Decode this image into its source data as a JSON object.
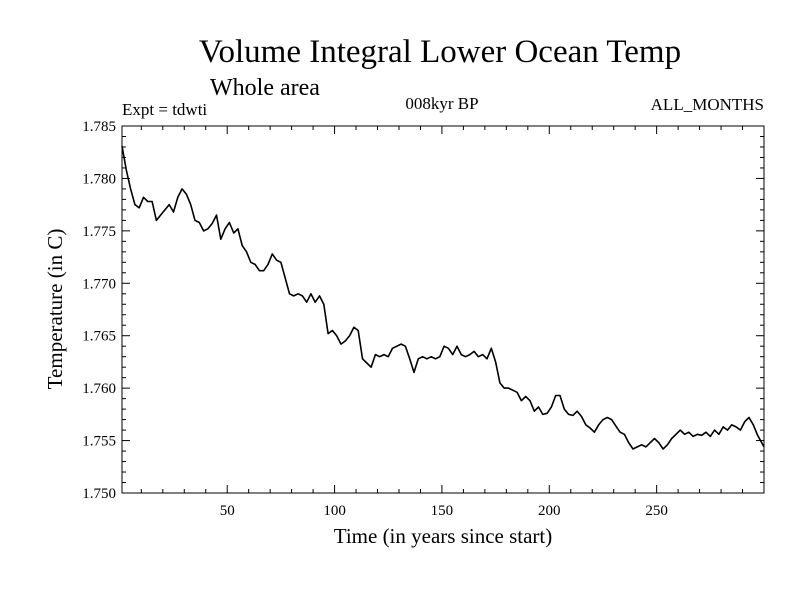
{
  "chart_data": {
    "type": "line",
    "title": "Volume Integral Lower Ocean Temp",
    "subtitle": "Whole area",
    "left_label": "Expt = tdwti",
    "center_label": "008kyr BP",
    "right_label": "ALL_MONTHS",
    "xlabel": "Time (in years since start)",
    "ylabel": "Temperature (in C)",
    "xlim": [
      1,
      300
    ],
    "ylim": [
      1.75,
      1.785
    ],
    "xticks": [
      50,
      100,
      150,
      200,
      250
    ],
    "xtick_labels": [
      "50",
      "100",
      "150",
      "200",
      "250"
    ],
    "yticks": [
      1.75,
      1.755,
      1.76,
      1.765,
      1.77,
      1.775,
      1.78,
      1.785
    ],
    "ytick_labels": [
      "1.750",
      "1.755",
      "1.760",
      "1.765",
      "1.770",
      "1.775",
      "1.780",
      "1.785"
    ],
    "grid": false,
    "series": [
      {
        "name": "Volume Integral Lower Ocean Temp",
        "color": "#000000",
        "x": [
          1,
          3,
          5,
          7,
          9,
          11,
          13,
          15,
          17,
          19,
          21,
          23,
          25,
          27,
          29,
          31,
          33,
          35,
          37,
          39,
          41,
          43,
          45,
          47,
          49,
          51,
          53,
          55,
          57,
          59,
          61,
          63,
          65,
          67,
          69,
          71,
          73,
          75,
          77,
          79,
          81,
          83,
          85,
          87,
          89,
          91,
          93,
          95,
          97,
          99,
          101,
          103,
          105,
          107,
          109,
          111,
          113,
          115,
          117,
          119,
          121,
          123,
          125,
          127,
          129,
          131,
          133,
          135,
          137,
          139,
          141,
          143,
          145,
          147,
          149,
          151,
          153,
          155,
          157,
          159,
          161,
          163,
          165,
          167,
          169,
          171,
          173,
          175,
          177,
          179,
          181,
          183,
          185,
          187,
          189,
          191,
          193,
          195,
          197,
          199,
          201,
          203,
          205,
          207,
          209,
          211,
          213,
          215,
          217,
          219,
          221,
          223,
          225,
          227,
          229,
          231,
          233,
          235,
          237,
          239,
          241,
          243,
          245,
          247,
          249,
          251,
          253,
          255,
          257,
          259,
          261,
          263,
          265,
          267,
          269,
          271,
          273,
          275,
          277,
          279,
          281,
          283,
          285,
          287,
          289,
          291,
          293,
          295,
          297,
          300
        ],
        "values": [
          1.7831,
          1.7808,
          1.779,
          1.7775,
          1.7772,
          1.7782,
          1.7778,
          1.7778,
          1.776,
          1.7765,
          1.777,
          1.7775,
          1.7768,
          1.7782,
          1.779,
          1.7785,
          1.7775,
          1.776,
          1.7758,
          1.775,
          1.7752,
          1.7757,
          1.7765,
          1.7742,
          1.7752,
          1.7758,
          1.7748,
          1.7752,
          1.7736,
          1.773,
          1.772,
          1.7718,
          1.7712,
          1.7712,
          1.7718,
          1.7728,
          1.7722,
          1.772,
          1.7705,
          1.769,
          1.7688,
          1.769,
          1.7688,
          1.7682,
          1.769,
          1.7682,
          1.7688,
          1.768,
          1.7652,
          1.7655,
          1.765,
          1.7642,
          1.7645,
          1.765,
          1.7658,
          1.7655,
          1.7628,
          1.7624,
          1.762,
          1.7632,
          1.763,
          1.7632,
          1.763,
          1.7638,
          1.764,
          1.7642,
          1.764,
          1.7628,
          1.7615,
          1.7628,
          1.763,
          1.7628,
          1.763,
          1.7628,
          1.763,
          1.764,
          1.7638,
          1.7632,
          1.764,
          1.7632,
          1.763,
          1.7632,
          1.7635,
          1.763,
          1.7632,
          1.7628,
          1.7638,
          1.7625,
          1.7605,
          1.76,
          1.76,
          1.7598,
          1.7596,
          1.7588,
          1.7592,
          1.7588,
          1.7578,
          1.7582,
          1.7575,
          1.7576,
          1.7582,
          1.7593,
          1.7593,
          1.758,
          1.7575,
          1.7574,
          1.7578,
          1.7573,
          1.7565,
          1.7562,
          1.7558,
          1.7565,
          1.757,
          1.7572,
          1.757,
          1.7564,
          1.7558,
          1.7556,
          1.7548,
          1.7542,
          1.7544,
          1.7546,
          1.7544,
          1.7548,
          1.7552,
          1.7548,
          1.7542,
          1.7546,
          1.7552,
          1.7556,
          1.756,
          1.7556,
          1.7558,
          1.7554,
          1.7556,
          1.7555,
          1.7558,
          1.7554,
          1.756,
          1.7556,
          1.7563,
          1.756,
          1.7565,
          1.7563,
          1.756,
          1.7568,
          1.7572,
          1.7565,
          1.7555,
          1.7544
        ]
      }
    ]
  }
}
